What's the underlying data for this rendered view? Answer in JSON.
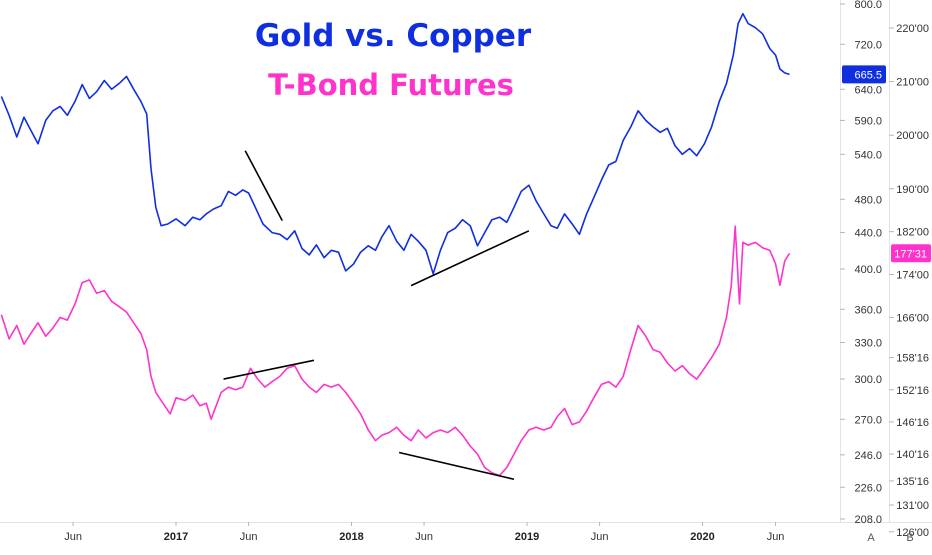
{
  "colors": {
    "gold_copper": "#0f2ee0",
    "tbond": "#ff33cc",
    "trendline": "#000000",
    "axis": "#e0e3eb",
    "badge_text": "#ffffff"
  },
  "chart_data": {
    "type": "line",
    "title": "Gold vs. Copper",
    "subtitle": "T-Bond Futures",
    "x_range": [
      "2016-01",
      "2020-07"
    ],
    "x_ticks": [
      {
        "label": "Jun",
        "date": "2016-06",
        "year": false
      },
      {
        "label": "2017",
        "date": "2017-01",
        "year": true
      },
      {
        "label": "Jun",
        "date": "2017-06",
        "year": false
      },
      {
        "label": "2018",
        "date": "2018-01",
        "year": true
      },
      {
        "label": "Jun",
        "date": "2018-06",
        "year": false
      },
      {
        "label": "2019",
        "date": "2019-01",
        "year": true
      },
      {
        "label": "Jun",
        "date": "2019-06",
        "year": false
      },
      {
        "label": "2020",
        "date": "2020-01",
        "year": true
      },
      {
        "label": "Jun",
        "date": "2020-06",
        "year": false
      }
    ],
    "left_axis": {
      "scale": "log",
      "ticks": [
        "800.0",
        "720.0",
        "640.0",
        "590.0",
        "540.0",
        "480.0",
        "440.0",
        "400.0",
        "360.0",
        "330.0",
        "300.0",
        "270.0",
        "246.0",
        "226.0",
        "208.0"
      ],
      "last_value_label": "665.5",
      "last_value": 665.5
    },
    "right_axis": {
      "scale": "linear",
      "ticks": [
        "220'00",
        "210'00",
        "200'00",
        "190'00",
        "182'00",
        "174'00",
        "166'00",
        "158'16",
        "152'16",
        "146'16",
        "140'16",
        "135'16",
        "131'00",
        "126'00"
      ],
      "last_value_label": "177'31",
      "last_value": 177.97
    },
    "series": [
      {
        "key": "gold_copper",
        "axis": "left",
        "points": [
          [
            "2016-01-04",
            628
          ],
          [
            "2016-01-20",
            598
          ],
          [
            "2016-02-05",
            565
          ],
          [
            "2016-02-20",
            595
          ],
          [
            "2016-03-05",
            575
          ],
          [
            "2016-03-20",
            555
          ],
          [
            "2016-04-05",
            590
          ],
          [
            "2016-04-20",
            605
          ],
          [
            "2016-05-05",
            612
          ],
          [
            "2016-05-20",
            598
          ],
          [
            "2016-06-05",
            620
          ],
          [
            "2016-06-20",
            648
          ],
          [
            "2016-07-05",
            625
          ],
          [
            "2016-07-20",
            636
          ],
          [
            "2016-08-05",
            655
          ],
          [
            "2016-08-20",
            640
          ],
          [
            "2016-09-05",
            650
          ],
          [
            "2016-09-20",
            662
          ],
          [
            "2016-10-05",
            640
          ],
          [
            "2016-10-20",
            620
          ],
          [
            "2016-11-01",
            600
          ],
          [
            "2016-11-10",
            520
          ],
          [
            "2016-11-20",
            470
          ],
          [
            "2016-12-01",
            448
          ],
          [
            "2016-12-15",
            450
          ],
          [
            "2017-01-01",
            456
          ],
          [
            "2017-01-20",
            448
          ],
          [
            "2017-02-05",
            458
          ],
          [
            "2017-02-20",
            455
          ],
          [
            "2017-03-05",
            462
          ],
          [
            "2017-03-20",
            468
          ],
          [
            "2017-04-05",
            472
          ],
          [
            "2017-04-20",
            490
          ],
          [
            "2017-05-05",
            485
          ],
          [
            "2017-05-20",
            492
          ],
          [
            "2017-06-01",
            488
          ],
          [
            "2017-06-15",
            470
          ],
          [
            "2017-07-01",
            450
          ],
          [
            "2017-07-20",
            440
          ],
          [
            "2017-08-05",
            438
          ],
          [
            "2017-08-20",
            432
          ],
          [
            "2017-09-05",
            442
          ],
          [
            "2017-09-20",
            422
          ],
          [
            "2017-10-05",
            415
          ],
          [
            "2017-10-20",
            426
          ],
          [
            "2017-11-05",
            412
          ],
          [
            "2017-11-20",
            420
          ],
          [
            "2017-12-05",
            418
          ],
          [
            "2017-12-20",
            398
          ],
          [
            "2018-01-05",
            405
          ],
          [
            "2018-01-20",
            418
          ],
          [
            "2018-02-05",
            425
          ],
          [
            "2018-02-20",
            420
          ],
          [
            "2018-03-05",
            435
          ],
          [
            "2018-03-20",
            448
          ],
          [
            "2018-04-05",
            430
          ],
          [
            "2018-04-20",
            420
          ],
          [
            "2018-05-05",
            438
          ],
          [
            "2018-05-20",
            430
          ],
          [
            "2018-06-05",
            420
          ],
          [
            "2018-06-20",
            395
          ],
          [
            "2018-07-05",
            420
          ],
          [
            "2018-07-20",
            440
          ],
          [
            "2018-08-05",
            445
          ],
          [
            "2018-08-20",
            455
          ],
          [
            "2018-09-05",
            448
          ],
          [
            "2018-09-20",
            425
          ],
          [
            "2018-10-05",
            440
          ],
          [
            "2018-10-20",
            455
          ],
          [
            "2018-11-05",
            458
          ],
          [
            "2018-11-20",
            452
          ],
          [
            "2018-12-05",
            470
          ],
          [
            "2018-12-20",
            490
          ],
          [
            "2019-01-05",
            498
          ],
          [
            "2019-01-20",
            478
          ],
          [
            "2019-02-05",
            462
          ],
          [
            "2019-02-20",
            448
          ],
          [
            "2019-03-05",
            445
          ],
          [
            "2019-03-20",
            462
          ],
          [
            "2019-04-05",
            450
          ],
          [
            "2019-04-20",
            438
          ],
          [
            "2019-05-05",
            462
          ],
          [
            "2019-05-20",
            482
          ],
          [
            "2019-06-05",
            505
          ],
          [
            "2019-06-20",
            525
          ],
          [
            "2019-07-05",
            530
          ],
          [
            "2019-07-20",
            560
          ],
          [
            "2019-08-05",
            580
          ],
          [
            "2019-08-20",
            605
          ],
          [
            "2019-09-05",
            590
          ],
          [
            "2019-09-20",
            580
          ],
          [
            "2019-10-05",
            572
          ],
          [
            "2019-10-20",
            578
          ],
          [
            "2019-11-05",
            552
          ],
          [
            "2019-11-20",
            540
          ],
          [
            "2019-12-05",
            548
          ],
          [
            "2019-12-20",
            538
          ],
          [
            "2020-01-05",
            555
          ],
          [
            "2020-01-20",
            580
          ],
          [
            "2020-02-05",
            620
          ],
          [
            "2020-02-20",
            650
          ],
          [
            "2020-03-05",
            700
          ],
          [
            "2020-03-15",
            760
          ],
          [
            "2020-03-25",
            780
          ],
          [
            "2020-04-05",
            760
          ],
          [
            "2020-04-20",
            752
          ],
          [
            "2020-05-05",
            740
          ],
          [
            "2020-05-20",
            712
          ],
          [
            "2020-06-01",
            700
          ],
          [
            "2020-06-10",
            675
          ],
          [
            "2020-06-20",
            668
          ],
          [
            "2020-06-30",
            665.5
          ]
        ]
      },
      {
        "key": "tbond",
        "axis": "right",
        "points": [
          [
            "2016-01-04",
            166.5
          ],
          [
            "2016-01-20",
            162.0
          ],
          [
            "2016-02-05",
            164.5
          ],
          [
            "2016-02-20",
            161.0
          ],
          [
            "2016-03-05",
            163.0
          ],
          [
            "2016-03-20",
            165.0
          ],
          [
            "2016-04-05",
            162.5
          ],
          [
            "2016-04-20",
            164.0
          ],
          [
            "2016-05-05",
            166.0
          ],
          [
            "2016-05-20",
            165.5
          ],
          [
            "2016-06-05",
            168.5
          ],
          [
            "2016-06-20",
            172.5
          ],
          [
            "2016-07-05",
            173.0
          ],
          [
            "2016-07-20",
            170.5
          ],
          [
            "2016-08-05",
            171.0
          ],
          [
            "2016-08-20",
            169.0
          ],
          [
            "2016-09-05",
            168.0
          ],
          [
            "2016-09-20",
            167.0
          ],
          [
            "2016-10-05",
            165.0
          ],
          [
            "2016-10-20",
            163.0
          ],
          [
            "2016-11-01",
            160.0
          ],
          [
            "2016-11-10",
            155.0
          ],
          [
            "2016-11-20",
            152.0
          ],
          [
            "2016-12-05",
            150.0
          ],
          [
            "2016-12-20",
            148.0
          ],
          [
            "2017-01-01",
            151.0
          ],
          [
            "2017-01-20",
            150.5
          ],
          [
            "2017-02-05",
            151.5
          ],
          [
            "2017-02-20",
            149.5
          ],
          [
            "2017-03-05",
            150.0
          ],
          [
            "2017-03-15",
            147.0
          ],
          [
            "2017-04-05",
            152.0
          ],
          [
            "2017-04-20",
            153.0
          ],
          [
            "2017-05-05",
            152.5
          ],
          [
            "2017-05-20",
            153.0
          ],
          [
            "2017-06-05",
            156.5
          ],
          [
            "2017-06-20",
            154.5
          ],
          [
            "2017-07-05",
            153.0
          ],
          [
            "2017-07-20",
            154.0
          ],
          [
            "2017-08-05",
            155.0
          ],
          [
            "2017-08-20",
            156.5
          ],
          [
            "2017-09-05",
            157.0
          ],
          [
            "2017-09-20",
            154.5
          ],
          [
            "2017-10-05",
            153.0
          ],
          [
            "2017-10-20",
            152.0
          ],
          [
            "2017-11-05",
            153.5
          ],
          [
            "2017-11-20",
            153.0
          ],
          [
            "2017-12-05",
            153.5
          ],
          [
            "2017-12-20",
            152.0
          ],
          [
            "2018-01-05",
            150.0
          ],
          [
            "2018-01-20",
            148.0
          ],
          [
            "2018-02-05",
            145.0
          ],
          [
            "2018-02-20",
            143.0
          ],
          [
            "2018-03-05",
            144.0
          ],
          [
            "2018-03-20",
            144.5
          ],
          [
            "2018-04-05",
            145.5
          ],
          [
            "2018-04-20",
            144.0
          ],
          [
            "2018-05-05",
            143.0
          ],
          [
            "2018-05-20",
            145.0
          ],
          [
            "2018-06-05",
            143.5
          ],
          [
            "2018-06-20",
            144.5
          ],
          [
            "2018-07-05",
            145.0
          ],
          [
            "2018-07-20",
            144.5
          ],
          [
            "2018-08-05",
            145.5
          ],
          [
            "2018-08-20",
            144.0
          ],
          [
            "2018-09-05",
            142.0
          ],
          [
            "2018-09-20",
            140.5
          ],
          [
            "2018-10-05",
            138.0
          ],
          [
            "2018-10-20",
            137.0
          ],
          [
            "2018-11-05",
            136.5
          ],
          [
            "2018-11-20",
            138.0
          ],
          [
            "2018-12-05",
            140.5
          ],
          [
            "2018-12-20",
            143.0
          ],
          [
            "2019-01-05",
            145.0
          ],
          [
            "2019-01-20",
            145.5
          ],
          [
            "2019-02-05",
            145.0
          ],
          [
            "2019-02-20",
            145.5
          ],
          [
            "2019-03-05",
            147.5
          ],
          [
            "2019-03-20",
            149.0
          ],
          [
            "2019-04-05",
            146.0
          ],
          [
            "2019-04-20",
            146.5
          ],
          [
            "2019-05-05",
            148.5
          ],
          [
            "2019-05-20",
            151.0
          ],
          [
            "2019-06-05",
            153.5
          ],
          [
            "2019-06-20",
            154.0
          ],
          [
            "2019-07-05",
            153.0
          ],
          [
            "2019-07-20",
            155.0
          ],
          [
            "2019-08-05",
            160.0
          ],
          [
            "2019-08-20",
            164.5
          ],
          [
            "2019-09-05",
            162.5
          ],
          [
            "2019-09-20",
            160.0
          ],
          [
            "2019-10-05",
            159.5
          ],
          [
            "2019-10-20",
            157.5
          ],
          [
            "2019-11-05",
            156.0
          ],
          [
            "2019-11-20",
            157.0
          ],
          [
            "2019-12-05",
            155.5
          ],
          [
            "2019-12-20",
            154.5
          ],
          [
            "2020-01-05",
            156.5
          ],
          [
            "2020-01-20",
            158.5
          ],
          [
            "2020-02-05",
            161.0
          ],
          [
            "2020-02-20",
            166.0
          ],
          [
            "2020-03-01",
            172.0
          ],
          [
            "2020-03-09",
            183.0
          ],
          [
            "2020-03-18",
            168.5
          ],
          [
            "2020-03-25",
            180.0
          ],
          [
            "2020-04-05",
            179.5
          ],
          [
            "2020-04-20",
            180.0
          ],
          [
            "2020-05-05",
            179.0
          ],
          [
            "2020-05-20",
            178.5
          ],
          [
            "2020-06-01",
            176.0
          ],
          [
            "2020-06-10",
            172.0
          ],
          [
            "2020-06-20",
            176.5
          ],
          [
            "2020-06-30",
            177.97
          ]
        ]
      }
    ],
    "trendlines": [
      {
        "axis": "left",
        "from": [
          "2017-05-25",
          545
        ],
        "to": [
          "2017-08-10",
          454
        ]
      },
      {
        "axis": "left",
        "from": [
          "2018-05-05",
          383
        ],
        "to": [
          "2019-01-05",
          442
        ]
      },
      {
        "axis": "right",
        "from": [
          "2017-04-10",
          154.5
        ],
        "to": [
          "2017-10-15",
          158.0
        ]
      },
      {
        "axis": "right",
        "from": [
          "2018-04-10",
          140.8
        ],
        "to": [
          "2018-12-05",
          135.8
        ]
      }
    ]
  },
  "scale_buttons": {
    "a": "A",
    "b": "B"
  }
}
